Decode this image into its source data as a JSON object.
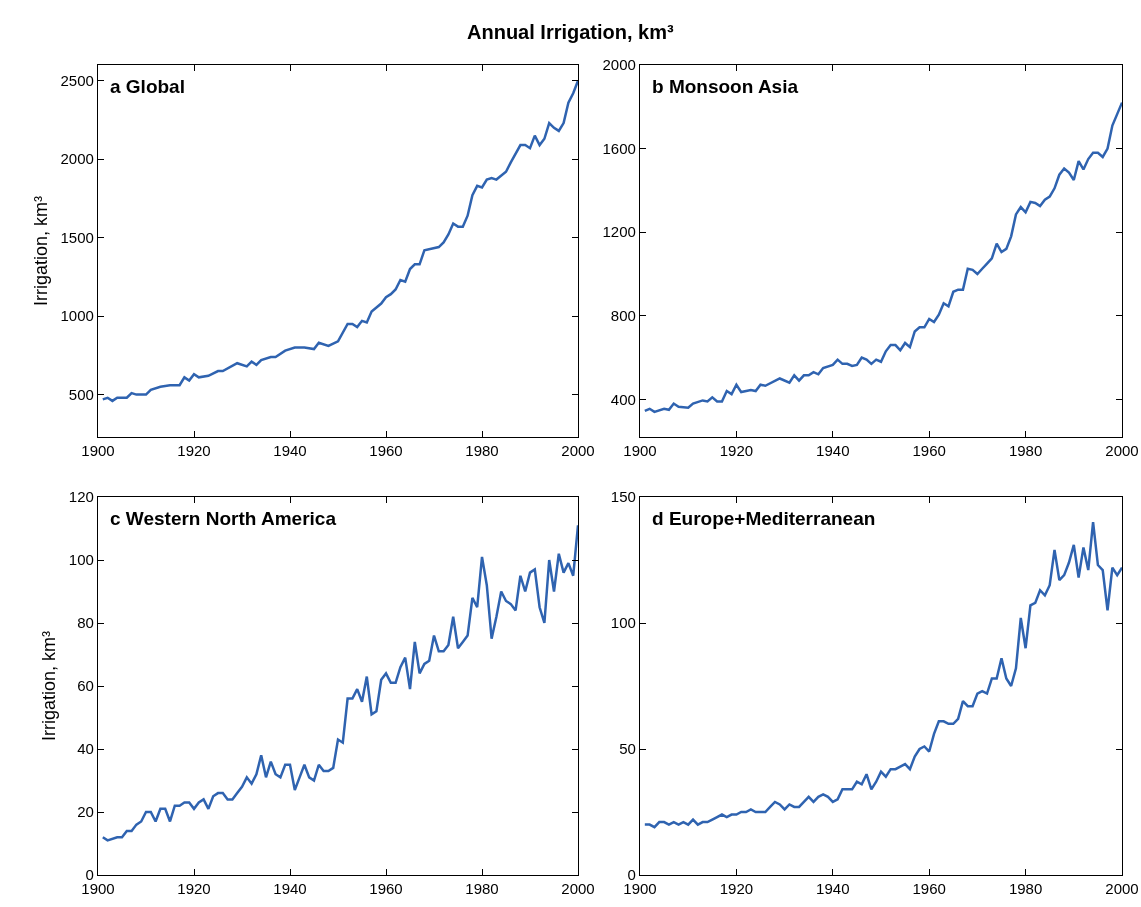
{
  "chart_data": [
    {
      "type": "line",
      "title": "a Global",
      "ylabel": "Irrigation, km³",
      "annotations": [
        "Annual Irrigation, km³"
      ],
      "xlim": [
        1900,
        2000
      ],
      "xticks": [
        1900,
        1920,
        1940,
        1960,
        1980,
        2000
      ],
      "ylim": [
        230,
        2600
      ],
      "yticks": [
        500,
        1000,
        1500,
        2000,
        2500
      ],
      "series": [
        {
          "color": "#2f63b0",
          "x": [
            1901,
            1902,
            1903,
            1904,
            1906,
            1907,
            1908,
            1910,
            1911,
            1913,
            1915,
            1917,
            1918,
            1919,
            1920,
            1921,
            1923,
            1925,
            1926,
            1929,
            1931,
            1932,
            1933,
            1934,
            1936,
            1937,
            1939,
            1941,
            1943,
            1945,
            1946,
            1948,
            1950,
            1952,
            1953,
            1954,
            1955,
            1956,
            1957,
            1959,
            1960,
            1961,
            1962,
            1963,
            1964,
            1965,
            1966,
            1967,
            1968,
            1971,
            1972,
            1973,
            1974,
            1975,
            1976,
            1977,
            1978,
            1979,
            1980,
            1981,
            1982,
            1983,
            1985,
            1986,
            1988,
            1989,
            1990,
            1991,
            1992,
            1993,
            1994,
            1995,
            1996,
            1997,
            1998,
            1999,
            2000
          ],
          "values": [
            470,
            480,
            460,
            480,
            480,
            510,
            500,
            500,
            530,
            550,
            560,
            560,
            610,
            590,
            630,
            610,
            620,
            650,
            650,
            700,
            680,
            710,
            690,
            720,
            740,
            740,
            780,
            800,
            800,
            790,
            830,
            810,
            840,
            950,
            950,
            930,
            970,
            960,
            1030,
            1080,
            1120,
            1140,
            1170,
            1230,
            1220,
            1300,
            1330,
            1330,
            1420,
            1440,
            1470,
            1520,
            1590,
            1570,
            1570,
            1640,
            1770,
            1830,
            1820,
            1870,
            1880,
            1870,
            1920,
            1980,
            2090,
            2090,
            2070,
            2150,
            2090,
            2130,
            2230,
            2200,
            2180,
            2230,
            2360,
            2420,
            2500
          ]
        }
      ]
    },
    {
      "type": "line",
      "title": "b Monsoon Asia",
      "xlim": [
        1900,
        2000
      ],
      "xticks": [
        1900,
        1920,
        1940,
        1960,
        1980,
        2000
      ],
      "ylim": [
        220,
        2000
      ],
      "yticks": [
        400,
        800,
        1200,
        1600,
        2000
      ],
      "series": [
        {
          "color": "#2f63b0",
          "x": [
            1901,
            1902,
            1903,
            1905,
            1906,
            1907,
            1908,
            1910,
            1911,
            1913,
            1914,
            1915,
            1916,
            1917,
            1918,
            1919,
            1920,
            1921,
            1923,
            1924,
            1925,
            1926,
            1929,
            1931,
            1932,
            1933,
            1934,
            1935,
            1936,
            1937,
            1938,
            1940,
            1941,
            1942,
            1943,
            1944,
            1945,
            1946,
            1947,
            1948,
            1949,
            1950,
            1951,
            1952,
            1953,
            1954,
            1955,
            1956,
            1957,
            1958,
            1959,
            1960,
            1961,
            1962,
            1963,
            1964,
            1965,
            1966,
            1967,
            1968,
            1969,
            1970,
            1971,
            1972,
            1973,
            1974,
            1975,
            1976,
            1977,
            1978,
            1979,
            1980,
            1981,
            1982,
            1983,
            1984,
            1985,
            1986,
            1987,
            1988,
            1989,
            1990,
            1991,
            1992,
            1993,
            1994,
            1995,
            1996,
            1997,
            1998,
            1999,
            2000
          ],
          "values": [
            345,
            355,
            340,
            355,
            350,
            380,
            365,
            360,
            380,
            395,
            390,
            410,
            390,
            390,
            440,
            425,
            470,
            435,
            445,
            440,
            470,
            465,
            500,
            480,
            515,
            490,
            515,
            515,
            530,
            520,
            550,
            565,
            590,
            570,
            570,
            560,
            565,
            600,
            590,
            570,
            590,
            580,
            630,
            660,
            660,
            635,
            670,
            650,
            725,
            745,
            745,
            785,
            770,
            805,
            860,
            845,
            915,
            925,
            925,
            1025,
            1020,
            1000,
            1025,
            1050,
            1075,
            1145,
            1105,
            1120,
            1180,
            1285,
            1320,
            1295,
            1345,
            1340,
            1325,
            1355,
            1370,
            1410,
            1475,
            1505,
            1485,
            1450,
            1540,
            1500,
            1550,
            1580,
            1580,
            1560,
            1600,
            1710,
            1765,
            1820
          ]
        }
      ]
    },
    {
      "type": "line",
      "title": "c Western North America",
      "ylabel": "Irrigation, km³",
      "xlim": [
        1900,
        2000
      ],
      "xticks": [
        1900,
        1920,
        1940,
        1960,
        1980,
        2000
      ],
      "ylim": [
        0,
        120
      ],
      "yticks": [
        0,
        20,
        40,
        60,
        80,
        100,
        120
      ],
      "series": [
        {
          "color": "#2f63b0",
          "x": [
            1901,
            1902,
            1904,
            1905,
            1906,
            1907,
            1908,
            1909,
            1910,
            1911,
            1912,
            1913,
            1914,
            1915,
            1916,
            1917,
            1918,
            1919,
            1920,
            1921,
            1922,
            1923,
            1924,
            1925,
            1926,
            1927,
            1928,
            1929,
            1930,
            1931,
            1932,
            1933,
            1934,
            1935,
            1936,
            1937,
            1938,
            1939,
            1940,
            1941,
            1942,
            1943,
            1944,
            1945,
            1946,
            1947,
            1948,
            1949,
            1950,
            1951,
            1952,
            1953,
            1954,
            1955,
            1956,
            1957,
            1958,
            1959,
            1960,
            1961,
            1962,
            1963,
            1964,
            1965,
            1966,
            1967,
            1968,
            1969,
            1970,
            1971,
            1972,
            1973,
            1974,
            1975,
            1976,
            1977,
            1978,
            1979,
            1980,
            1981,
            1982,
            1983,
            1984,
            1985,
            1986,
            1987,
            1988,
            1989,
            1990,
            1991,
            1992,
            1993,
            1994,
            1995,
            1996,
            1997,
            1998,
            1999,
            2000
          ],
          "values": [
            12,
            11,
            12,
            12,
            14,
            14,
            16,
            17,
            20,
            20,
            17,
            21,
            21,
            17,
            22,
            22,
            23,
            23,
            21,
            23,
            24,
            21,
            25,
            26,
            26,
            24,
            24,
            26,
            28,
            31,
            29,
            32,
            38,
            31,
            36,
            32,
            31,
            35,
            35,
            27,
            31,
            35,
            31,
            30,
            35,
            33,
            33,
            34,
            43,
            42,
            56,
            56,
            59,
            55,
            63,
            51,
            52,
            62,
            64,
            61,
            61,
            66,
            69,
            59,
            74,
            64,
            67,
            68,
            76,
            71,
            71,
            73,
            82,
            72,
            74,
            76,
            88,
            85,
            101,
            92,
            75,
            82,
            90,
            87,
            86,
            84,
            95,
            90,
            96,
            97,
            85,
            80,
            100,
            90,
            102,
            96,
            99,
            95,
            111
          ]
        }
      ]
    },
    {
      "type": "line",
      "title": "d Europe+Mediterranean",
      "xlim": [
        1900,
        2000
      ],
      "xticks": [
        1900,
        1920,
        1940,
        1960,
        1980,
        2000
      ],
      "ylim": [
        0,
        150
      ],
      "yticks": [
        0,
        50,
        100,
        150
      ],
      "series": [
        {
          "color": "#2f63b0",
          "x": [
            1901,
            1902,
            1903,
            1904,
            1905,
            1906,
            1907,
            1908,
            1909,
            1910,
            1911,
            1912,
            1913,
            1914,
            1915,
            1916,
            1917,
            1918,
            1919,
            1920,
            1921,
            1922,
            1923,
            1924,
            1925,
            1926,
            1927,
            1928,
            1929,
            1930,
            1931,
            1932,
            1933,
            1934,
            1935,
            1936,
            1937,
            1938,
            1939,
            1940,
            1941,
            1942,
            1943,
            1944,
            1945,
            1946,
            1947,
            1948,
            1949,
            1950,
            1951,
            1952,
            1953,
            1954,
            1955,
            1956,
            1957,
            1958,
            1959,
            1960,
            1961,
            1962,
            1963,
            1964,
            1965,
            1966,
            1967,
            1968,
            1969,
            1970,
            1971,
            1972,
            1973,
            1974,
            1975,
            1976,
            1977,
            1978,
            1979,
            1980,
            1981,
            1982,
            1983,
            1984,
            1985,
            1986,
            1987,
            1988,
            1989,
            1990,
            1991,
            1992,
            1993,
            1994,
            1995,
            1996,
            1997,
            1998,
            1999,
            2000
          ],
          "values": [
            20,
            20,
            19,
            21,
            21,
            20,
            21,
            20,
            21,
            20,
            22,
            20,
            21,
            21,
            22,
            23,
            24,
            23,
            24,
            24,
            25,
            25,
            26,
            25,
            25,
            25,
            27,
            29,
            28,
            26,
            28,
            27,
            27,
            29,
            31,
            29,
            31,
            32,
            31,
            29,
            30,
            34,
            34,
            34,
            37,
            36,
            40,
            34,
            37,
            41,
            39,
            42,
            42,
            43,
            44,
            42,
            47,
            50,
            51,
            49,
            56,
            61,
            61,
            60,
            60,
            62,
            69,
            67,
            67,
            72,
            73,
            72,
            78,
            78,
            86,
            78,
            75,
            82,
            102,
            90,
            107,
            108,
            113,
            111,
            115,
            129,
            117,
            119,
            124,
            131,
            118,
            130,
            121,
            140,
            123,
            121,
            105,
            122,
            119,
            122
          ]
        }
      ]
    }
  ]
}
